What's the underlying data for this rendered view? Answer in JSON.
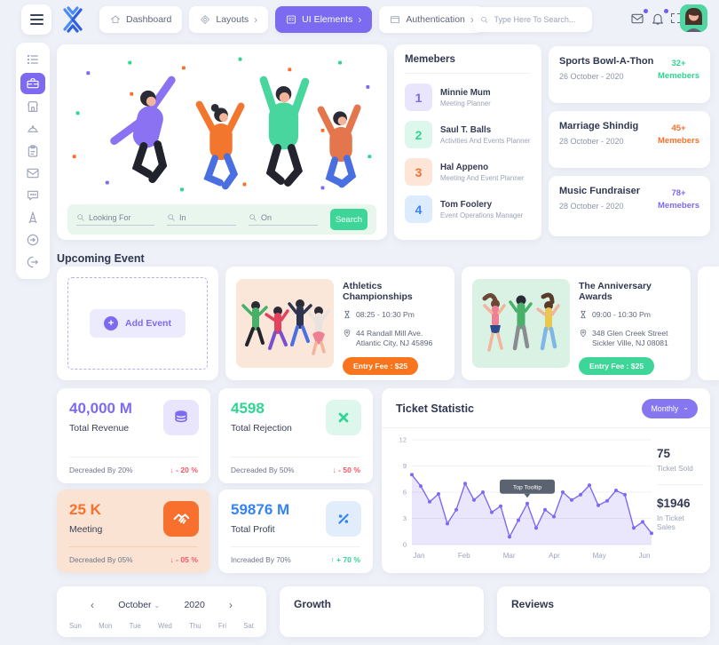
{
  "header": {
    "nav": [
      {
        "label": "Dashboard"
      },
      {
        "label": "Layouts"
      },
      {
        "label": "UI Elements"
      },
      {
        "label": "Authentication"
      }
    ],
    "search_placeholder": "Type Here To Search..."
  },
  "icons": {
    "chevron_right": "›",
    "chevron_left": "‹",
    "chevron_down": "⌄",
    "plus": "+"
  },
  "sidebar": {
    "items": [
      "list",
      "briefcase",
      "shop",
      "cloche",
      "clipboard",
      "mail",
      "chat",
      "tower",
      "sign-in",
      "sign-out"
    ],
    "active_index": 1
  },
  "hero": {
    "fields": [
      {
        "placeholder": "Looking For"
      },
      {
        "placeholder": "In"
      },
      {
        "placeholder": "On"
      }
    ],
    "search_label": "Search"
  },
  "members": {
    "title": "Memebers",
    "items": [
      {
        "num": "1",
        "name": "Minnie Mum",
        "role": "Meeting Planner"
      },
      {
        "num": "2",
        "name": "Saul T. Balls",
        "role": "Activities And Events Planner"
      },
      {
        "num": "3",
        "name": "Hal Appeno",
        "role": "Meeting And Event Planner"
      },
      {
        "num": "4",
        "name": "Tom Foolery",
        "role": "Event Operations Manager"
      }
    ]
  },
  "side_events": [
    {
      "title": "Sports Bowl-A-Thon",
      "date": "26 October - 2020",
      "count": "32+",
      "count_label": "Memebers"
    },
    {
      "title": "Marriage Shindig",
      "date": "28 October - 2020",
      "count": "45+",
      "count_label": "Memebers"
    },
    {
      "title": "Music Fundraiser",
      "date": "28 October - 2020",
      "count": "78+",
      "count_label": "Memebers"
    }
  ],
  "upcoming": {
    "title": "Upcoming Event",
    "add_label": "Add Event",
    "events": [
      {
        "title": "Athletics Championships",
        "time": "08:25 - 10:30 Pm",
        "address": "44 Randall Mill Ave. Atlantic City, NJ 45896",
        "fee": "Entry Fee : $25"
      },
      {
        "title": "The Anniversary Awards",
        "time": "09:00 - 10:30 Pm",
        "address": "348 Glen Creek Street Sickler Ville, NJ 08081",
        "fee": "Entry Fee : $25"
      }
    ]
  },
  "stats": [
    {
      "value": "40,000 M",
      "label": "Total Revenue",
      "note": "Decreaded By 20%",
      "delta": "↓ - 20 %",
      "direction": "down"
    },
    {
      "value": "4598",
      "label": "Total Rejection",
      "note": "Decreaded By 50%",
      "delta": "↓ - 50 %",
      "direction": "down"
    },
    {
      "value": "25 K",
      "label": "Meeting",
      "note": "Decreaded By 05%",
      "delta": "↓ - 05 %",
      "direction": "down"
    },
    {
      "value": "59876 M",
      "label": "Total Profit",
      "note": "Increaded By 70%",
      "delta": "↑ + 70 %",
      "direction": "up"
    }
  ],
  "ticket": {
    "title": "Ticket Statistic",
    "range_label": "Monthly",
    "tooltip": "Top Tooltip",
    "sold_value": "75",
    "sold_label": "Ticket Sold",
    "sales_value": "$1946",
    "sales_label": "In Ticket Sales"
  },
  "chart_data": {
    "type": "area",
    "title": "Ticket Statistic",
    "x_labels": [
      "Jan",
      "Feb",
      "Mar",
      "Apr",
      "May",
      "Jun"
    ],
    "values": [
      8,
      6.7,
      4.9,
      5.8,
      2.4,
      4,
      7,
      5.1,
      6,
      3.7,
      4.4,
      0.9,
      2.8,
      4.7,
      1.9,
      4,
      3.2,
      6,
      5.1,
      5.7,
      6.8,
      4.5,
      5,
      6.2,
      5.7,
      1.9,
      2.6,
      1.3
    ],
    "ylim": [
      0,
      12
    ],
    "yticks": [
      0,
      3,
      6,
      9,
      12
    ],
    "grid": true,
    "legend": false,
    "color": "#7c6bf0",
    "tooltip_index": 13,
    "tooltip_label": "Top Tooltip"
  },
  "bottom": {
    "calendar": {
      "month": "October",
      "year": "2020",
      "day_headers": [
        "Sun",
        "Mon",
        "Tue",
        "Wed",
        "Thu",
        "Fri",
        "Sat"
      ]
    },
    "growth_title": "Growth",
    "reviews_title": "Reviews"
  },
  "colors": {
    "accent_purple": "#7c6bf0",
    "accent_green": "#3ed598",
    "accent_orange": "#f8702d",
    "accent_blue": "#3583f6",
    "danger": "#f25767",
    "page_bg": "#eef1f7"
  }
}
